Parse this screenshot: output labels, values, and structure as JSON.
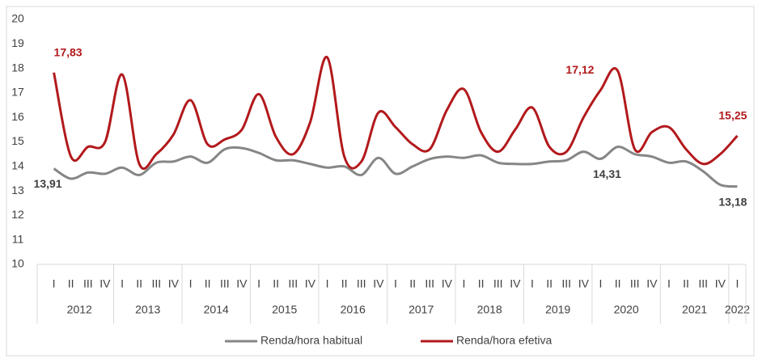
{
  "chart_data": {
    "type": "line",
    "categories": [
      "I",
      "II",
      "III",
      "IV",
      "I",
      "II",
      "III",
      "IV",
      "I",
      "II",
      "III",
      "IV",
      "I",
      "II",
      "III",
      "IV",
      "I",
      "II",
      "III",
      "IV",
      "I",
      "II",
      "III",
      "IV",
      "I",
      "II",
      "III",
      "IV",
      "I",
      "II",
      "III",
      "IV",
      "I",
      "II",
      "III",
      "IV",
      "I",
      "II",
      "III",
      "IV",
      "I"
    ],
    "years": [
      "2012",
      "2013",
      "2014",
      "2015",
      "2016",
      "2017",
      "2018",
      "2019",
      "2020",
      "2021",
      "2022"
    ],
    "series": [
      {
        "name": "Renda/hora habitual",
        "color": "#868686",
        "values": [
          13.91,
          13.5,
          13.75,
          13.7,
          13.95,
          13.65,
          14.15,
          14.2,
          14.4,
          14.15,
          14.7,
          14.75,
          14.55,
          14.25,
          14.25,
          14.1,
          13.95,
          14.0,
          13.65,
          14.35,
          13.7,
          14.0,
          14.3,
          14.4,
          14.35,
          14.45,
          14.15,
          14.1,
          14.1,
          14.2,
          14.25,
          14.6,
          14.31,
          14.8,
          14.5,
          14.4,
          14.15,
          14.2,
          13.8,
          13.25,
          13.18
        ],
        "value_labels": [
          "13,91",
          null,
          null,
          null,
          null,
          null,
          null,
          null,
          null,
          null,
          null,
          null,
          null,
          null,
          null,
          null,
          null,
          null,
          null,
          null,
          null,
          null,
          null,
          null,
          null,
          null,
          null,
          null,
          null,
          null,
          null,
          null,
          "14,31",
          null,
          null,
          null,
          null,
          null,
          null,
          null,
          "13,18"
        ]
      },
      {
        "name": "Renda/hora efetiva",
        "color": "#b2191c",
        "values": [
          17.83,
          14.4,
          14.8,
          15.0,
          17.75,
          14.1,
          14.5,
          15.3,
          16.7,
          14.9,
          15.1,
          15.5,
          16.95,
          15.2,
          14.5,
          15.8,
          18.45,
          14.4,
          14.2,
          16.2,
          15.6,
          14.9,
          14.7,
          16.3,
          17.15,
          15.4,
          14.6,
          15.5,
          16.4,
          14.8,
          14.6,
          16.0,
          17.12,
          17.9,
          14.7,
          15.4,
          15.6,
          14.7,
          14.1,
          14.5,
          15.25
        ],
        "value_labels": [
          "17,83",
          null,
          null,
          null,
          null,
          null,
          null,
          null,
          null,
          null,
          null,
          null,
          null,
          null,
          null,
          null,
          null,
          null,
          null,
          null,
          null,
          null,
          null,
          null,
          null,
          null,
          null,
          null,
          null,
          null,
          null,
          null,
          "17,12",
          null,
          null,
          null,
          null,
          null,
          null,
          null,
          "15,25"
        ]
      }
    ],
    "ylim": [
      10,
      20
    ],
    "yticks": [
      10,
      11,
      12,
      13,
      14,
      15,
      16,
      17,
      18,
      19,
      20
    ],
    "grid": false,
    "legend": "bottom"
  }
}
